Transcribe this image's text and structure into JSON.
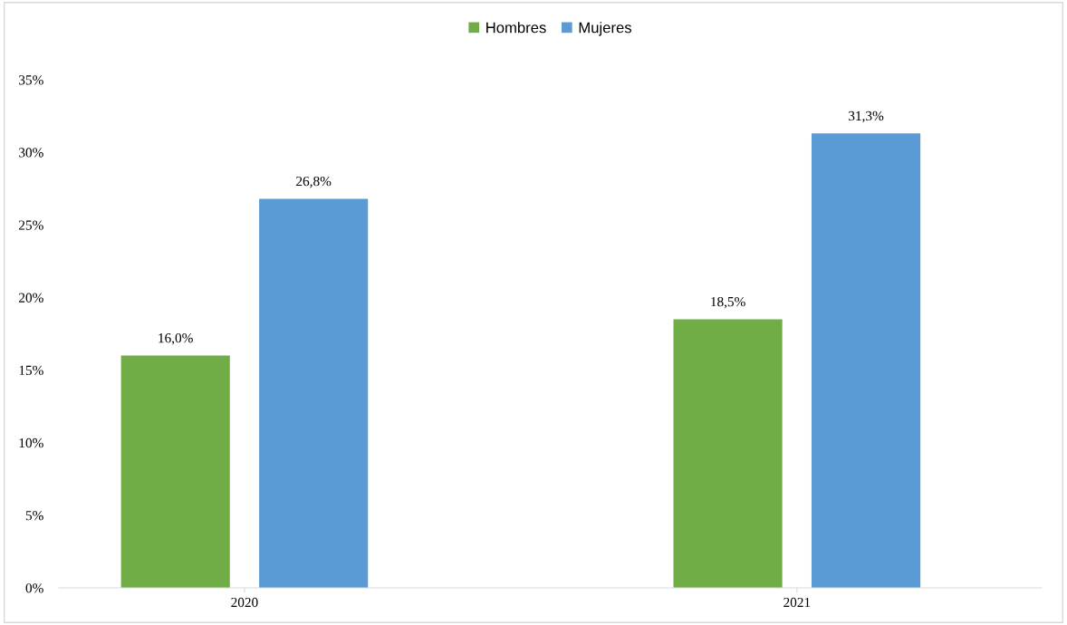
{
  "chart_data": {
    "type": "bar",
    "categories": [
      "2020",
      "2021"
    ],
    "series": [
      {
        "name": "Hombres",
        "color": "#70ad47",
        "values": [
          16.0,
          18.5
        ],
        "value_labels": [
          "16,0%",
          "18,5%"
        ]
      },
      {
        "name": "Mujeres",
        "color": "#5b9bd5",
        "values": [
          26.8,
          31.3
        ],
        "value_labels": [
          "26,8%",
          "31,3%"
        ]
      }
    ],
    "ylim": [
      0,
      35
    ],
    "yticks": [
      {
        "value": 0,
        "label": "0%"
      },
      {
        "value": 5,
        "label": "5%"
      },
      {
        "value": 10,
        "label": "10%"
      },
      {
        "value": 15,
        "label": "15%"
      },
      {
        "value": 20,
        "label": "20%"
      },
      {
        "value": 25,
        "label": "25%"
      },
      {
        "value": 30,
        "label": "30%"
      },
      {
        "value": 35,
        "label": "35%"
      }
    ],
    "grid": false,
    "legend": "top"
  }
}
